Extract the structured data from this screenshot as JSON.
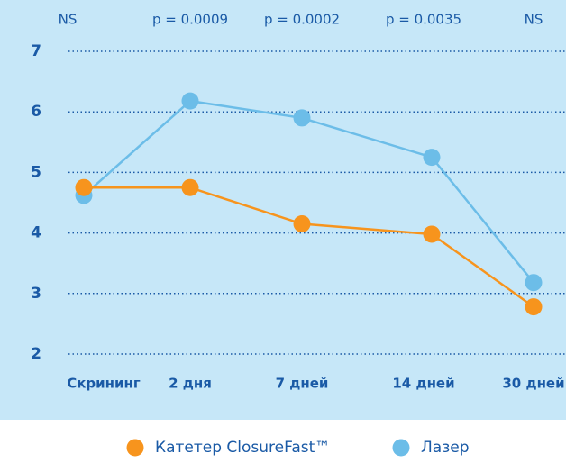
{
  "chart_data": {
    "type": "line",
    "categories": [
      "Скрининг",
      "2 дня",
      "7 дней",
      "14 дней",
      "30 дней"
    ],
    "annotations": [
      "NS",
      "p = 0.0009",
      "p = 0.0002",
      "p = 0.0035",
      "NS"
    ],
    "series": [
      {
        "name": "Катетер ClosureFast™",
        "color": "#f7941d",
        "values": [
          4.75,
          4.75,
          4.15,
          3.98,
          2.78
        ]
      },
      {
        "name": "Лазер",
        "color": "#6cbde8",
        "values": [
          4.62,
          6.18,
          5.9,
          5.25,
          3.18
        ]
      }
    ],
    "ylim": [
      2,
      7
    ],
    "yticks": [
      2,
      3,
      4,
      5,
      6,
      7
    ],
    "grid": true
  }
}
